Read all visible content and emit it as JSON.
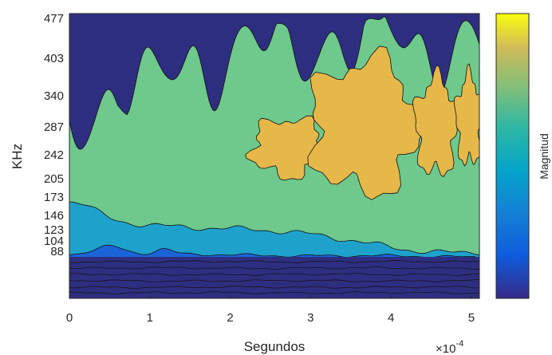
{
  "chart_data": {
    "type": "heatmap",
    "subtype": "filled contour",
    "xlabel": "Segundos",
    "ylabel": "KHz",
    "x_exponent_label": "×10",
    "x_exponent_power": "-4",
    "xlim": [
      0,
      5.1
    ],
    "x_ticks": [
      0,
      1,
      2,
      3,
      4,
      5
    ],
    "x_tick_labels": [
      "0",
      "1",
      "2",
      "3",
      "4",
      "5"
    ],
    "y_tick_labels": [
      "477",
      "403",
      "340",
      "287",
      "242",
      "205",
      "173",
      "146",
      "123",
      "104",
      "88"
    ],
    "colorbar_label": "Magnitud",
    "colormap": "parula",
    "colors": {
      "level1": "#2e2e80",
      "level2": "#1a64d8",
      "level3": "#1ea2cc",
      "level4": "#6fc88c",
      "level5": "#e6b84a",
      "contour_line": "#111111"
    },
    "grid": false
  }
}
